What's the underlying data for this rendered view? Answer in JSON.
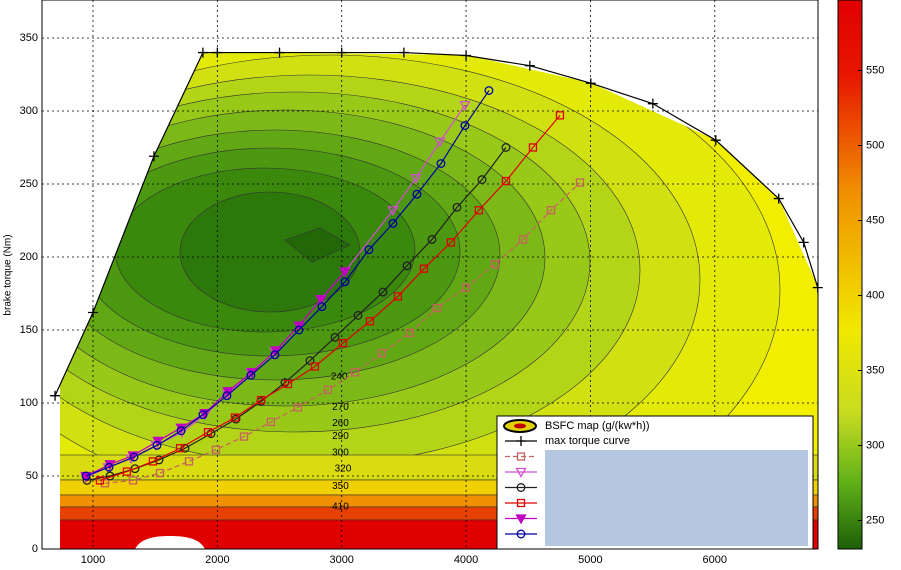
{
  "chart_data": {
    "type": "line",
    "y_label": "brake torque (Nm)",
    "map_label": "BSFC map (g/(kw*h))",
    "xlim": [
      590,
      6830
    ],
    "ylim": [
      0,
      376
    ],
    "xticks": [
      1000,
      2000,
      3000,
      4000,
      5000,
      6000
    ],
    "yticks": [
      0,
      50,
      100,
      150,
      200,
      250,
      300,
      350
    ],
    "grid": true,
    "colorbar": {
      "lim": [
        231,
        597
      ],
      "ticks": [
        250,
        300,
        350,
        400,
        450,
        500,
        550
      ]
    },
    "contour_labels": [
      {
        "value": 240,
        "x": 2980,
        "y": 118
      },
      {
        "value": 270,
        "x": 2990,
        "y": 97
      },
      {
        "value": 260,
        "x": 2990,
        "y": 86
      },
      {
        "value": 290,
        "x": 2990,
        "y": 77
      },
      {
        "value": 300,
        "x": 2990,
        "y": 66
      },
      {
        "value": 320,
        "x": 3010,
        "y": 55
      },
      {
        "value": 350,
        "x": 2990,
        "y": 43
      },
      {
        "value": 410,
        "x": 2990,
        "y": 29
      }
    ],
    "series": [
      {
        "name": "max torque curve",
        "color": "#000000",
        "marker": "plus",
        "x": [
          695,
          1000,
          1490,
          1884,
          2000,
          2500,
          3000,
          3500,
          4000,
          4513,
          5003,
          5502,
          6008,
          6514,
          6715,
          6828
        ],
        "values": [
          105,
          162,
          269,
          340,
          340,
          340,
          340,
          340,
          338,
          331,
          319,
          305,
          280,
          240,
          210,
          179
        ]
      },
      {
        "color": "#c86060",
        "marker": "square",
        "dash": true,
        "x": [
          1096,
          1322,
          1539,
          1772,
          1989,
          2214,
          2431,
          2648,
          2889,
          3106,
          3323,
          3548,
          3765,
          4000,
          4233,
          4458,
          4683,
          4916
        ],
        "values": [
          45,
          47,
          52,
          60,
          68,
          77,
          87,
          97,
          109,
          121,
          134,
          148,
          165,
          179,
          195,
          212,
          232,
          251
        ]
      },
      {
        "color": "#d050d0",
        "marker": "triangle-down",
        "x": [
          944,
          1121,
          1306,
          1507,
          1716,
          1900,
          2085,
          2270,
          2463,
          2656,
          2833,
          3026,
          3412,
          3597,
          3790,
          3991
        ],
        "values": [
          49,
          56,
          62,
          71,
          80,
          92,
          106,
          121,
          135,
          153,
          171,
          190,
          232,
          254,
          279,
          304
        ]
      },
      {
        "color": "#202020",
        "marker": "circle",
        "x": [
          952,
          1137,
          1338,
          1531,
          1740,
          1949,
          2150,
          2351,
          2544,
          2745,
          2946,
          3131,
          3332,
          3525,
          3726,
          3927,
          4128,
          4321
        ],
        "values": [
          47,
          50,
          55,
          61,
          69,
          79,
          89,
          101,
          114,
          129,
          145,
          160,
          176,
          194,
          212,
          234,
          253,
          275
        ]
      },
      {
        "color": "#e00000",
        "marker": "square",
        "x": [
          1056,
          1273,
          1482,
          1700,
          1925,
          2142,
          2351,
          2568,
          2785,
          3010,
          3227,
          3452,
          3661,
          3878,
          4103,
          4321,
          4538,
          4755
        ],
        "values": [
          47,
          53,
          60,
          69,
          80,
          90,
          102,
          113,
          125,
          141,
          156,
          173,
          192,
          210,
          232,
          252,
          275,
          297
        ]
      },
      {
        "color": "#c000c0",
        "marker": "triangle-down",
        "filled": true,
        "x": [
          944,
          1137,
          1322,
          1523,
          1708,
          1900,
          2085,
          2278,
          2471,
          2656,
          2833,
          3026
        ],
        "values": [
          50,
          58,
          64,
          74,
          83,
          93,
          108,
          121,
          136,
          153,
          171,
          190
        ]
      },
      {
        "color": "#0000a0",
        "marker": "circle",
        "x": [
          944,
          1129,
          1330,
          1515,
          1708,
          1884,
          2077,
          2270,
          2463,
          2656,
          2841,
          3026,
          3219,
          3412,
          3605,
          3798,
          3991,
          4184
        ],
        "values": [
          50,
          56,
          63,
          71,
          81,
          92,
          105,
          119,
          133,
          150,
          166,
          183,
          205,
          223,
          243,
          264,
          290,
          314
        ]
      }
    ]
  }
}
